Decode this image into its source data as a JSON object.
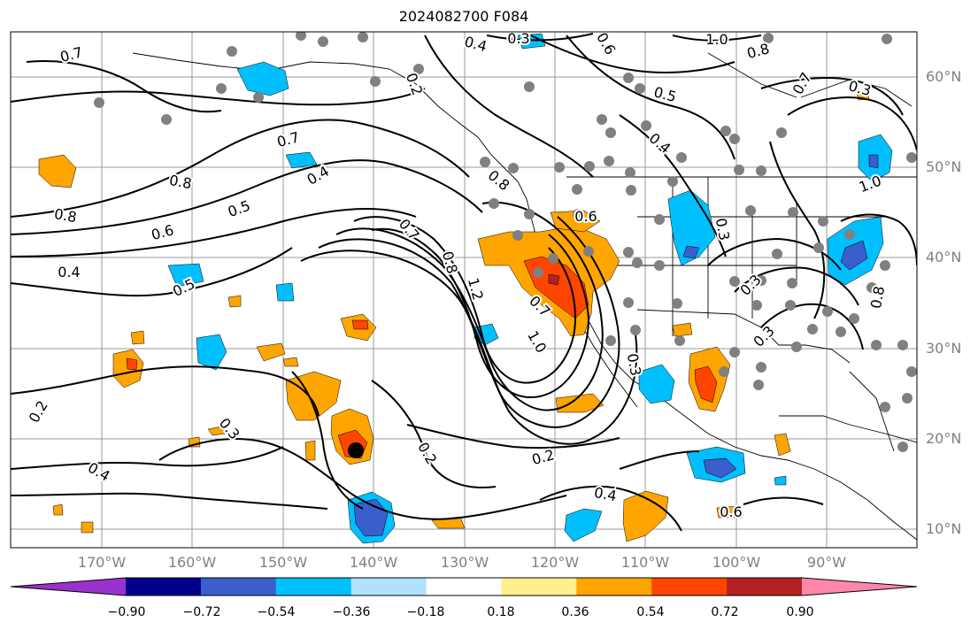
{
  "title": "2024082700 F084",
  "map": {
    "lon_range": [
      -180,
      -80
    ],
    "lat_range": [
      8,
      65
    ],
    "lat_labels": [
      "60°N",
      "50°N",
      "40°N",
      "30°N",
      "20°N",
      "10°N"
    ],
    "lon_labels": [
      "170°W",
      "160°W",
      "150°W",
      "140°W",
      "130°W",
      "120°W",
      "110°W",
      "100°W",
      "90°W"
    ],
    "contour_labels": [
      "0.7",
      "0.4",
      "0.3",
      "0.6",
      "1.0",
      "0.8",
      "0.7",
      "0.5",
      "0.8",
      "0.4",
      "0.7",
      "0.8",
      "0.4",
      "0.8",
      "0.6",
      "0.5",
      "0.6",
      "0.7",
      "0.4",
      "0.5",
      "0.8",
      "1.2",
      "0.7",
      "1.0",
      "0.3",
      "0.3",
      "0.2",
      "0.3",
      "0.4",
      "0.2",
      "0.2",
      "0.4",
      "0.6",
      "0.3",
      "0.3",
      "0.8",
      "1.0",
      "0.3",
      "0.2"
    ],
    "storm_marker": {
      "name": "storm-center",
      "lon": -140,
      "lat": 18.5
    }
  },
  "colorbar": {
    "ticks": [
      "−0.90",
      "−0.72",
      "−0.54",
      "−0.36",
      "−0.18",
      "0.18",
      "0.36",
      "0.54",
      "0.72",
      "0.90"
    ],
    "colors": [
      "#9932cc",
      "#00008b",
      "#3a5fcd",
      "#00bfff",
      "#b0e2ff",
      "#ffffff",
      "#fff08c",
      "#ffa500",
      "#ff4500",
      "#b22222",
      "#ff88aa"
    ]
  }
}
